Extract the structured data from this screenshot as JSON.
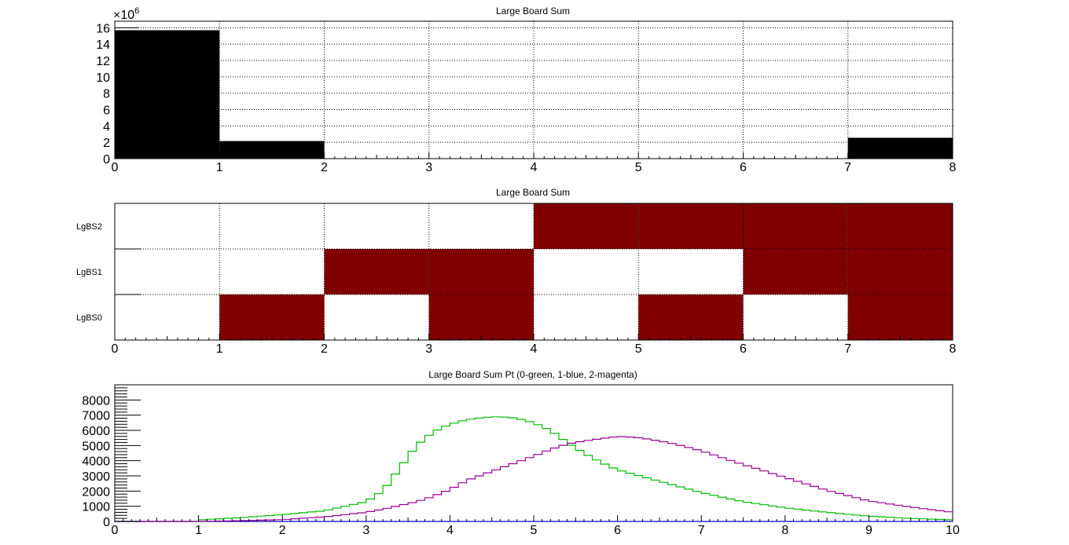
{
  "chart_data": [
    {
      "type": "bar",
      "title": "Large Board Sum",
      "xlim": [
        0,
        8
      ],
      "ylim": [
        0,
        16.8
      ],
      "y_exponent_label": "×10",
      "y_exponent": "6",
      "grid": true,
      "bins": [
        {
          "x0": 0,
          "x1": 1,
          "value": 15.7
        },
        {
          "x0": 1,
          "x1": 2,
          "value": 2.15
        },
        {
          "x0": 2,
          "x1": 3,
          "value": 0
        },
        {
          "x0": 3,
          "x1": 4,
          "value": 0
        },
        {
          "x0": 4,
          "x1": 5,
          "value": 0
        },
        {
          "x0": 5,
          "x1": 6,
          "value": 0
        },
        {
          "x0": 6,
          "x1": 7,
          "value": 0
        },
        {
          "x0": 7,
          "x1": 8,
          "value": 2.55
        }
      ],
      "xticks": [
        "0",
        "1",
        "2",
        "3",
        "4",
        "5",
        "6",
        "7",
        "8"
      ],
      "yticks": [
        "0",
        "2",
        "4",
        "6",
        "8",
        "10",
        "12",
        "14",
        "16"
      ],
      "bar_color": "#000000"
    },
    {
      "type": "heatmap",
      "title": "Large Board Sum",
      "xlim": [
        0,
        8
      ],
      "rows": [
        "LgBS0",
        "LgBS1",
        "LgBS2"
      ],
      "xticks": [
        "0",
        "1",
        "2",
        "3",
        "4",
        "5",
        "6",
        "7",
        "8"
      ],
      "cells": [
        [
          0,
          1,
          0,
          1,
          0,
          1,
          0,
          1
        ],
        [
          0,
          0,
          1,
          1,
          0,
          0,
          1,
          1
        ],
        [
          0,
          0,
          0,
          0,
          1,
          1,
          1,
          1
        ]
      ],
      "fill_color": "#800000",
      "grid": true
    },
    {
      "type": "line",
      "title": "Large Board Sum Pt (0-green, 1-blue, 2-magenta)",
      "xlim": [
        0,
        10
      ],
      "ylim": [
        0,
        9000
      ],
      "xticks": [
        "0",
        "1",
        "2",
        "3",
        "4",
        "5",
        "6",
        "7",
        "8",
        "9",
        "10"
      ],
      "yticks": [
        "0",
        "1000",
        "2000",
        "3000",
        "4000",
        "5000",
        "6000",
        "7000",
        "8000"
      ],
      "x": [
        1.0,
        1.5,
        2.0,
        2.5,
        3.0,
        3.2,
        3.4,
        3.6,
        3.8,
        4.0,
        4.2,
        4.4,
        4.6,
        4.8,
        5.0,
        5.2,
        5.4,
        5.6,
        5.8,
        6.0,
        6.2,
        6.4,
        6.6,
        6.8,
        7.0,
        7.5,
        8.0,
        8.5,
        9.0,
        9.5,
        10.0
      ],
      "series": [
        {
          "name": "0-green",
          "color": "#00bb00",
          "values": [
            100,
            250,
            450,
            700,
            1300,
            2000,
            3500,
            5000,
            5900,
            6400,
            6700,
            6850,
            6900,
            6800,
            6500,
            6000,
            5200,
            4500,
            3900,
            3400,
            3100,
            2800,
            2500,
            2200,
            1900,
            1300,
            900,
            600,
            350,
            200,
            100
          ]
        },
        {
          "name": "1-blue",
          "color": "#0000cc",
          "values": [
            0,
            0,
            0,
            0,
            0,
            0,
            0,
            0,
            0,
            0,
            0,
            0,
            0,
            0,
            0,
            0,
            0,
            0,
            0,
            0,
            0,
            0,
            0,
            0,
            0,
            0,
            0,
            0,
            0,
            0,
            0
          ]
        },
        {
          "name": "2-magenta",
          "color": "#990099",
          "values": [
            0,
            50,
            120,
            300,
            600,
            800,
            1050,
            1300,
            1650,
            2100,
            2700,
            3100,
            3500,
            3900,
            4300,
            4750,
            5100,
            5300,
            5450,
            5600,
            5550,
            5400,
            5200,
            4950,
            4650,
            3750,
            2900,
            2050,
            1350,
            950,
            600
          ]
        }
      ]
    }
  ]
}
